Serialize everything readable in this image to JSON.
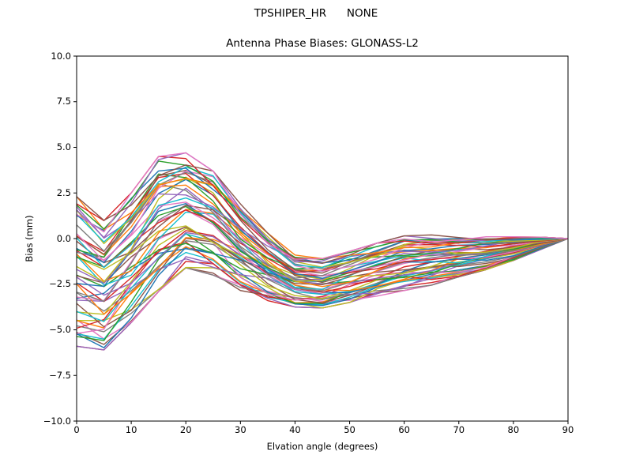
{
  "figure": {
    "background": "#ffffff",
    "suptitle": "TPSHIPER_HR      NONE",
    "axes_title": "Antenna Phase Biases: GLONASS-L2",
    "xlabel": "Elvation angle (degrees)",
    "ylabel": "Bias (mm)",
    "axis_color": "#000000"
  },
  "chart_data": {
    "type": "line",
    "title": "TPSHIPER_HR      NONE",
    "subtitle": "Antenna Phase Biases: GLONASS-L2",
    "xlabel": "Elvation angle (degrees)",
    "ylabel": "Bias (mm)",
    "xlim": [
      0,
      90
    ],
    "ylim": [
      -10.0,
      10.0
    ],
    "grid": false,
    "legend": "none",
    "x_tick_values": [
      0,
      10,
      20,
      30,
      40,
      50,
      60,
      70,
      80,
      90
    ],
    "x_tick_labels": [
      "0",
      "10",
      "20",
      "30",
      "40",
      "50",
      "60",
      "70",
      "80",
      "90"
    ],
    "y_tick_values": [
      10.0,
      7.5,
      5.0,
      2.5,
      0.0,
      -2.5,
      -5.0,
      -7.5,
      -10.0
    ],
    "y_tick_labels": [
      "10.0",
      "7.5",
      "5.0",
      "2.5",
      "0.0",
      "−2.5",
      "−5.0",
      "−7.5",
      "−10.0"
    ],
    "x": [
      0,
      5,
      10,
      15,
      20,
      25,
      30,
      35,
      40,
      45,
      50,
      55,
      60,
      65,
      70,
      75,
      80,
      85,
      90
    ],
    "envelope_top": [
      2.3,
      1.0,
      2.5,
      4.5,
      4.7,
      3.7,
      1.9,
      0.3,
      -0.9,
      -1.1,
      -0.7,
      -0.25,
      0.15,
      0.2,
      0.15,
      0.1,
      0.1,
      0.08,
      0.0
    ],
    "envelope_bottom": [
      -5.9,
      -6.1,
      -4.6,
      -2.9,
      -1.6,
      -2.0,
      -2.9,
      -3.4,
      -3.75,
      -3.8,
      -3.5,
      -3.15,
      -2.85,
      -2.55,
      -2.1,
      -1.7,
      -1.2,
      -0.6,
      0.0
    ],
    "n_series": 54,
    "seed": 11,
    "line_width": 1.4,
    "palette": [
      "#1f77b4",
      "#ff7f0e",
      "#2ca02c",
      "#d62728",
      "#9467bd",
      "#8c564b",
      "#e377c2",
      "#7f7f7f",
      "#bcbd22",
      "#17becf"
    ]
  },
  "layout_note": ""
}
